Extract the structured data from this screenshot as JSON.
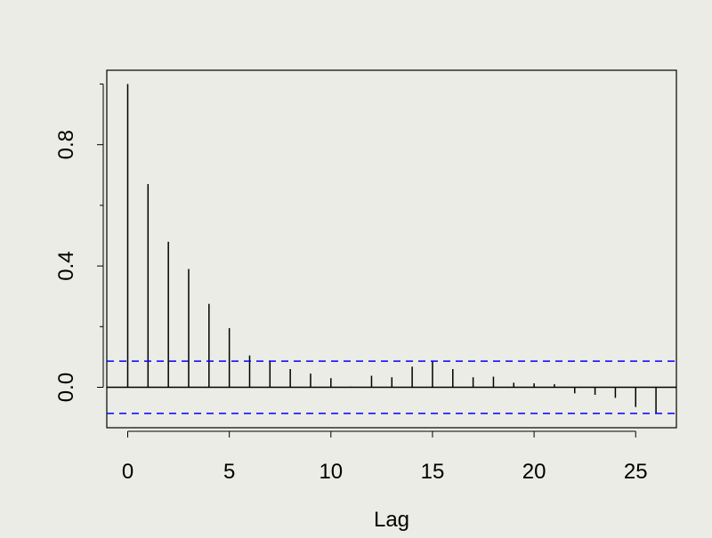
{
  "chart_data": {
    "type": "bar",
    "subtype": "acf",
    "title": "",
    "xlabel": "Lag",
    "ylabel": "",
    "xlim": [
      -1,
      27
    ],
    "ylim": [
      -0.13,
      1.04
    ],
    "x_ticks": [
      0,
      5,
      10,
      15,
      20,
      25
    ],
    "x_tick_labels": [
      "0",
      "5",
      "10",
      "15",
      "20",
      "25"
    ],
    "y_ticks": [
      0.0,
      0.4,
      0.8
    ],
    "y_tick_labels": [
      "0.0",
      "0.4",
      "0.8"
    ],
    "y_minor_ticks": [
      0.2,
      0.6,
      1.0
    ],
    "lags": [
      0,
      1,
      2,
      3,
      4,
      5,
      6,
      7,
      8,
      9,
      10,
      11,
      12,
      13,
      14,
      15,
      16,
      17,
      18,
      19,
      20,
      21,
      22,
      23,
      24,
      25,
      26
    ],
    "values": [
      1.0,
      0.67,
      0.48,
      0.39,
      0.275,
      0.195,
      0.105,
      0.085,
      0.06,
      0.045,
      0.03,
      0.002,
      0.038,
      0.033,
      0.068,
      0.088,
      0.06,
      0.033,
      0.035,
      0.015,
      0.013,
      0.01,
      -0.02,
      -0.025,
      -0.035,
      -0.065,
      -0.085
    ],
    "confidence_band": [
      -0.086,
      0.086
    ],
    "colors": {
      "bars": "#000000",
      "band": "#0000ff",
      "background": "#ecece6"
    },
    "grid": false,
    "legend": "none"
  }
}
